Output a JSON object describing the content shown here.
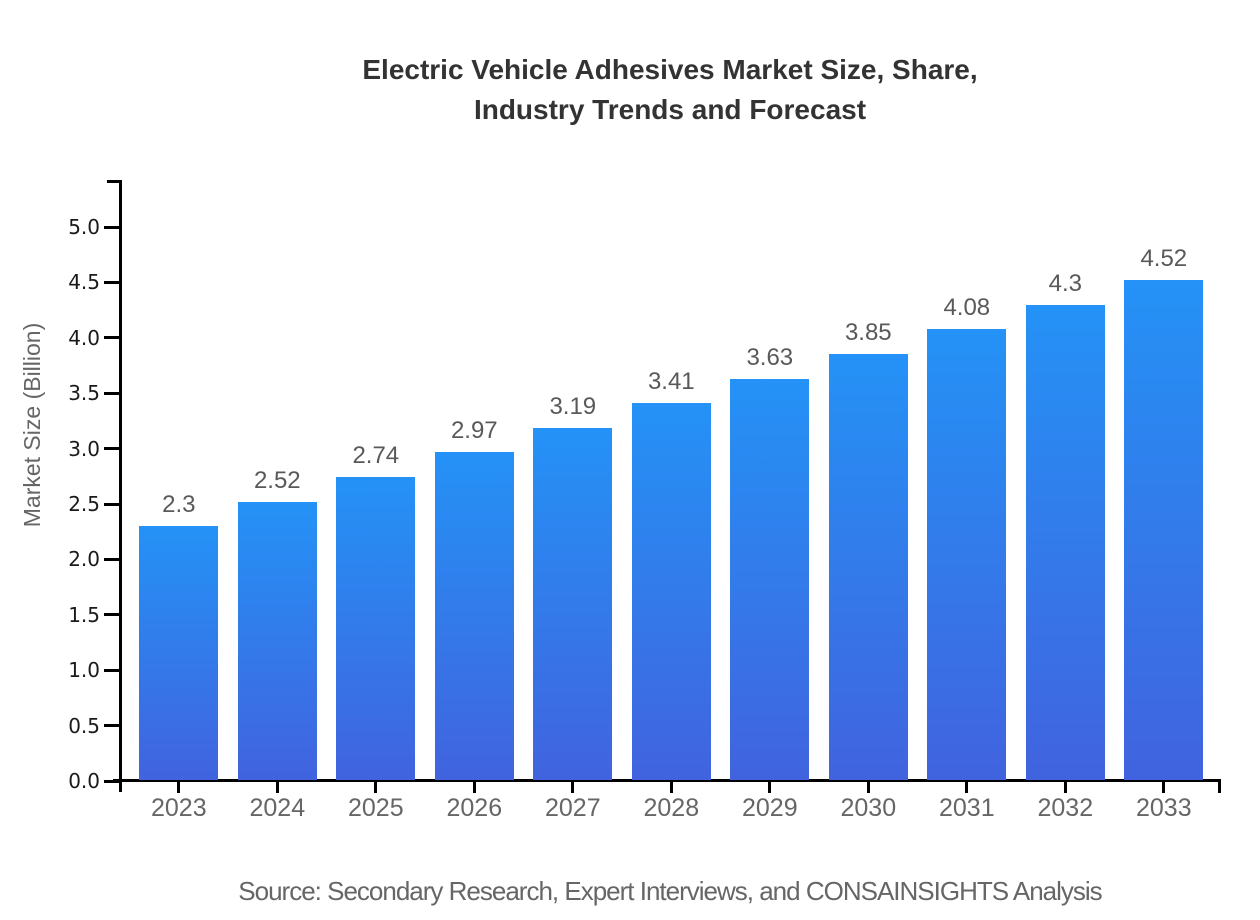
{
  "title": {
    "line1": "Electric Vehicle Adhesives Market Size, Share,",
    "line2": "Industry Trends and Forecast"
  },
  "source_note": "Source: Secondary Research, Expert Interviews, and CONSAINSIGHTS Analysis",
  "chart_data": {
    "type": "bar",
    "title": "Electric Vehicle Adhesives Market Size, Share, Industry Trends and Forecast",
    "categories": [
      "2023",
      "2024",
      "2025",
      "2026",
      "2027",
      "2028",
      "2029",
      "2030",
      "2031",
      "2032",
      "2033"
    ],
    "values": [
      2.3,
      2.52,
      2.74,
      2.97,
      3.19,
      3.41,
      3.63,
      3.85,
      4.08,
      4.3,
      4.52
    ],
    "value_labels": [
      "2.3",
      "2.52",
      "2.74",
      "2.97",
      "3.19",
      "3.41",
      "3.63",
      "3.85",
      "4.08",
      "4.3",
      "4.52"
    ],
    "xlabel": "",
    "ylabel": "Market Size (Billion)",
    "ylim": [
      0.0,
      5.0
    ],
    "ytick_step": 0.5,
    "ytick_labels": [
      "0.0",
      "0.5",
      "1.0",
      "1.5",
      "2.0",
      "2.5",
      "3.0",
      "3.5",
      "4.0",
      "4.5",
      "5.0"
    ],
    "grid": false,
    "legend": null,
    "colors": {
      "bar_gradient_top": "#2492f6",
      "bar_gradient_bottom": "#4163df",
      "axis": "#000000",
      "y_tick_label": "#1a1a1a",
      "category_label": "#666666",
      "value_label": "#595959",
      "title": "#333333",
      "source": "#666666",
      "background": "#ffffff"
    }
  }
}
